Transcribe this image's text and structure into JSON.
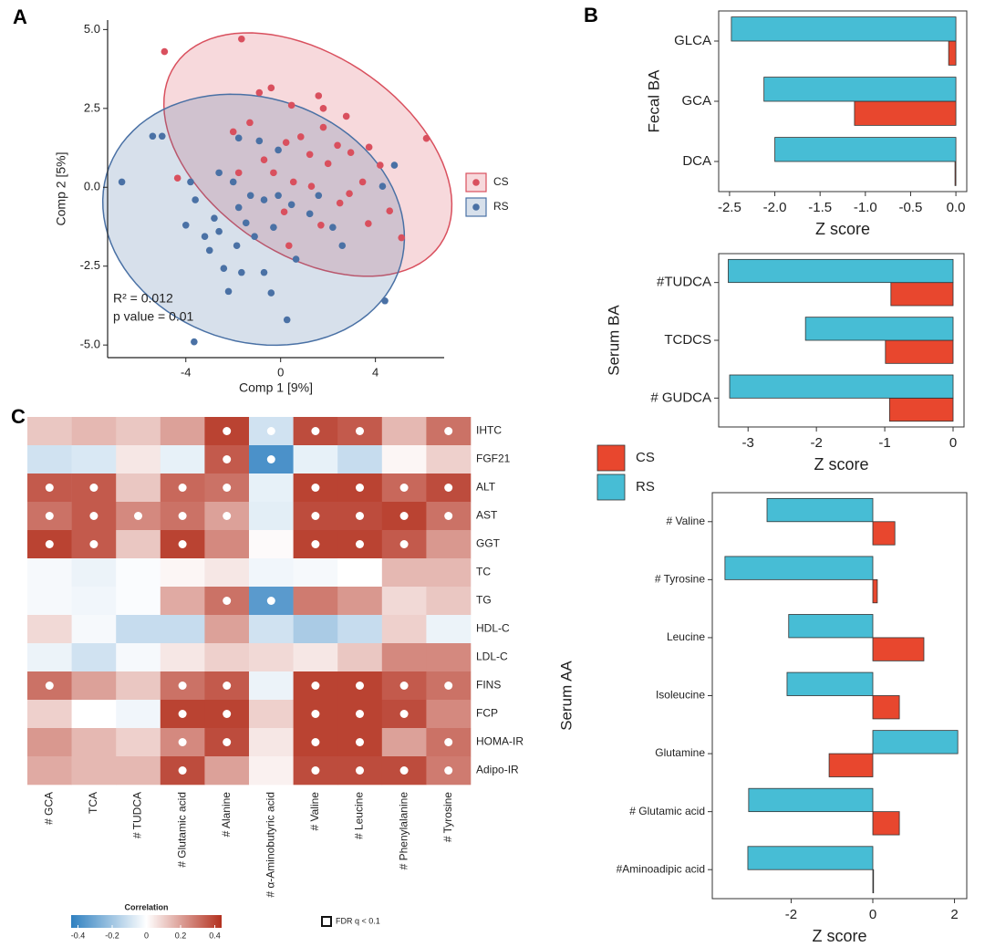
{
  "chart_data": [
    {
      "type": "scatter",
      "panel": "A",
      "xlabel": "Comp 1 [9%]",
      "ylabel": "Comp 2 [5%]",
      "xlim": [
        -7.3,
        6.9
      ],
      "ylim": [
        -5.4,
        5.3
      ],
      "xticks": [
        -4,
        0,
        4
      ],
      "yticks": [
        {
          "value": -5,
          "label": "-5.0"
        },
        -2.5,
        {
          "value": 0,
          "label": "0.0"
        },
        2.5,
        {
          "value": 5,
          "label": "5.0"
        }
      ],
      "annotations": [
        "R² =  0.012",
        "p value =  0.01"
      ],
      "series": [
        {
          "name": "CS",
          "color": "#d9505e",
          "x": [
            -4.9,
            -1.65,
            6.15,
            5.1,
            4.6,
            3.7,
            2.9,
            2.5,
            1.8,
            0.46,
            -0.4,
            -0.9,
            1.6,
            -1.3,
            -0.7,
            -0.3,
            0.54,
            1.23,
            2.0,
            0.85,
            1.3,
            0.15,
            1.7,
            0.35,
            2.4,
            2.96,
            3.46,
            1.8,
            0.23,
            -1.77,
            -4.35,
            -2.0,
            2.77,
            3.73,
            4.2
          ],
          "values": [
            4.3,
            4.7,
            1.55,
            -1.6,
            -0.75,
            -1.15,
            -0.2,
            -0.5,
            1.9,
            2.6,
            3.15,
            3.0,
            2.9,
            2.05,
            0.87,
            0.46,
            0.17,
            1.04,
            0.75,
            1.6,
            0.03,
            -0.78,
            -1.2,
            -1.85,
            1.33,
            1.1,
            0.17,
            2.5,
            1.42,
            0.46,
            0.29,
            1.76,
            2.25,
            1.27,
            0.7
          ]
        },
        {
          "name": "RS",
          "color": "#4a71a5",
          "x": [
            -6.7,
            -5.4,
            -5.0,
            -3.65,
            0.27,
            4.4,
            4.8,
            -3.6,
            -4.0,
            -3.2,
            -2.6,
            -1.85,
            -0.7,
            -0.4,
            -2.2,
            -1.65,
            -2.4,
            -3.0,
            -1.77,
            -1.27,
            -0.7,
            -0.1,
            0.46,
            1.23,
            2.2,
            1.6,
            -1.77,
            -0.9,
            -0.1,
            -2.0,
            -2.6,
            -3.8,
            -0.3,
            -1.1,
            0.65,
            -1.46,
            -2.8,
            2.6,
            4.3
          ],
          "values": [
            0.17,
            1.62,
            1.62,
            -4.9,
            -4.2,
            -3.6,
            0.7,
            -0.4,
            -1.2,
            -1.56,
            -1.4,
            -1.85,
            -2.7,
            -3.35,
            -3.3,
            -2.7,
            -2.57,
            -2.0,
            -0.64,
            -0.26,
            -0.4,
            -0.26,
            -0.55,
            -0.84,
            -1.27,
            -0.26,
            1.56,
            1.47,
            1.18,
            0.17,
            0.46,
            0.17,
            -1.27,
            -1.56,
            -2.28,
            -1.13,
            -0.98,
            -1.85,
            0.03
          ]
        }
      ]
    },
    {
      "type": "barh",
      "panel": "B",
      "xlabel": "Z score",
      "ylabel": "Fecal BA",
      "categories": [
        "GLCA",
        "GCA",
        "DCA"
      ],
      "xlim": [
        -2.62,
        0.12
      ],
      "xticks": [
        -2.5,
        {
          "value": -2,
          "label": "-2.0"
        },
        -1.5,
        {
          "value": -1,
          "label": "-1.0"
        },
        -0.5,
        {
          "value": 0,
          "label": "0.0"
        }
      ],
      "series": [
        {
          "color": "#e8472e",
          "values": [
            -0.08,
            -1.12,
            -0.01
          ]
        },
        {
          "color": "#47bdd5",
          "values": [
            -2.48,
            -2.12,
            -2.0
          ]
        }
      ]
    },
    {
      "type": "barh",
      "xlabel": "Z score",
      "ylabel": "Serum BA",
      "legend": true,
      "categories": [
        "#TUDCA",
        "TCDCS",
        "# GUDCA"
      ],
      "xlim": [
        -3.43,
        0.16
      ],
      "xticks": [
        -3,
        -2,
        -1,
        0
      ],
      "series": [
        {
          "name": "CS",
          "color": "#e8472e",
          "values": [
            -0.91,
            -0.99,
            -0.93
          ]
        },
        {
          "name": "RS",
          "color": "#47bdd5",
          "values": [
            -3.29,
            -2.16,
            -3.27
          ]
        }
      ]
    },
    {
      "type": "barh",
      "xlabel": "Z score",
      "ylabel": "Serum AA",
      "categories": [
        "# Valine",
        "# Tyrosine",
        "Leucine",
        "Isoleucine",
        "Glutamine",
        "# Glutamic acid",
        "#Aminoadipic acid"
      ],
      "xlim": [
        -3.93,
        2.3
      ],
      "xticks": [
        -2,
        0,
        2
      ],
      "series": [
        {
          "color": "#e8472e",
          "values": [
            0.54,
            0.11,
            1.25,
            0.65,
            -1.07,
            0.65,
            0
          ]
        },
        {
          "color": "#47bdd5",
          "values": [
            -2.59,
            -3.62,
            -2.06,
            -2.1,
            2.08,
            -3.04,
            -3.06
          ]
        }
      ]
    },
    {
      "type": "heatmap",
      "panel": "C",
      "x": [
        "# GCA",
        "TCA",
        "# TUDCA",
        "# Glutamic acid",
        "# Alanine",
        "# α-Aminobutyric acid",
        "# Valine",
        "# Leucine",
        "# Phenylalanine",
        "# Tyrosine"
      ],
      "y": [
        "IHTC",
        "FGF21",
        "ALT",
        "AST",
        "GGT",
        "TC",
        "TG",
        "HDL-C",
        "LDL-C",
        "FINS",
        "FCP",
        "HOMA-IR",
        "Adipo-IR"
      ],
      "values": [
        [
          0.12,
          0.15,
          0.12,
          0.2,
          0.4,
          -0.1,
          0.38,
          0.35,
          0.15,
          0.3
        ],
        [
          -0.1,
          -0.08,
          0.05,
          -0.05,
          0.35,
          -0.38,
          -0.05,
          -0.12,
          0.02,
          0.1
        ],
        [
          0.35,
          0.35,
          0.12,
          0.32,
          0.3,
          -0.05,
          0.4,
          0.4,
          0.32,
          0.38
        ],
        [
          0.3,
          0.35,
          0.25,
          0.3,
          0.2,
          -0.06,
          0.38,
          0.38,
          0.4,
          0.3
        ],
        [
          0.4,
          0.35,
          0.12,
          0.4,
          0.25,
          0.01,
          0.4,
          0.4,
          0.35,
          0.22
        ],
        [
          -0.02,
          -0.04,
          -0.01,
          0.02,
          0.05,
          -0.03,
          -0.02,
          0.0,
          0.15,
          0.15
        ],
        [
          -0.02,
          -0.03,
          -0.01,
          0.18,
          0.3,
          -0.35,
          0.28,
          0.22,
          0.08,
          0.12
        ],
        [
          0.08,
          -0.02,
          -0.12,
          -0.12,
          0.2,
          -0.1,
          -0.18,
          -0.12,
          0.1,
          -0.04
        ],
        [
          -0.04,
          -0.1,
          -0.02,
          0.05,
          0.1,
          0.08,
          0.05,
          0.12,
          0.25,
          0.25
        ],
        [
          0.3,
          0.2,
          0.12,
          0.3,
          0.35,
          -0.04,
          0.4,
          0.4,
          0.35,
          0.3
        ],
        [
          0.1,
          0.0,
          -0.03,
          0.4,
          0.4,
          0.1,
          0.4,
          0.4,
          0.38,
          0.25
        ],
        [
          0.22,
          0.15,
          0.1,
          0.25,
          0.38,
          0.05,
          0.4,
          0.4,
          0.2,
          0.3
        ],
        [
          0.18,
          0.15,
          0.15,
          0.38,
          0.2,
          0.03,
          0.38,
          0.38,
          0.38,
          0.28
        ]
      ],
      "significant": [
        [
          false,
          false,
          false,
          false,
          true,
          true,
          true,
          true,
          false,
          true
        ],
        [
          false,
          false,
          false,
          false,
          true,
          true,
          false,
          false,
          false,
          false
        ],
        [
          true,
          true,
          false,
          true,
          true,
          false,
          true,
          true,
          true,
          true
        ],
        [
          true,
          true,
          true,
          true,
          true,
          false,
          true,
          true,
          true,
          true
        ],
        [
          true,
          true,
          false,
          true,
          false,
          false,
          true,
          true,
          true,
          false
        ],
        [
          false,
          false,
          false,
          false,
          false,
          false,
          false,
          false,
          false,
          false
        ],
        [
          false,
          false,
          false,
          false,
          true,
          true,
          false,
          false,
          false,
          false
        ],
        [
          false,
          false,
          false,
          false,
          false,
          false,
          false,
          false,
          false,
          false
        ],
        [
          false,
          false,
          false,
          false,
          false,
          false,
          false,
          false,
          false,
          false
        ],
        [
          true,
          false,
          false,
          true,
          true,
          false,
          true,
          true,
          true,
          true
        ],
        [
          false,
          false,
          false,
          true,
          true,
          false,
          true,
          true,
          true,
          false
        ],
        [
          false,
          false,
          false,
          true,
          true,
          false,
          true,
          true,
          false,
          true
        ],
        [
          false,
          false,
          false,
          true,
          false,
          false,
          true,
          true,
          true,
          true
        ]
      ],
      "colors": [
        "#2f80c0",
        "#ffffff",
        "#b3301e"
      ],
      "clim": [
        -0.44,
        0.44
      ],
      "cticks": [
        -0.4,
        -0.2,
        0,
        0.2,
        0.4
      ],
      "colorbar_title": "Correlation",
      "legend_label": "FDR q < 0.1"
    }
  ]
}
